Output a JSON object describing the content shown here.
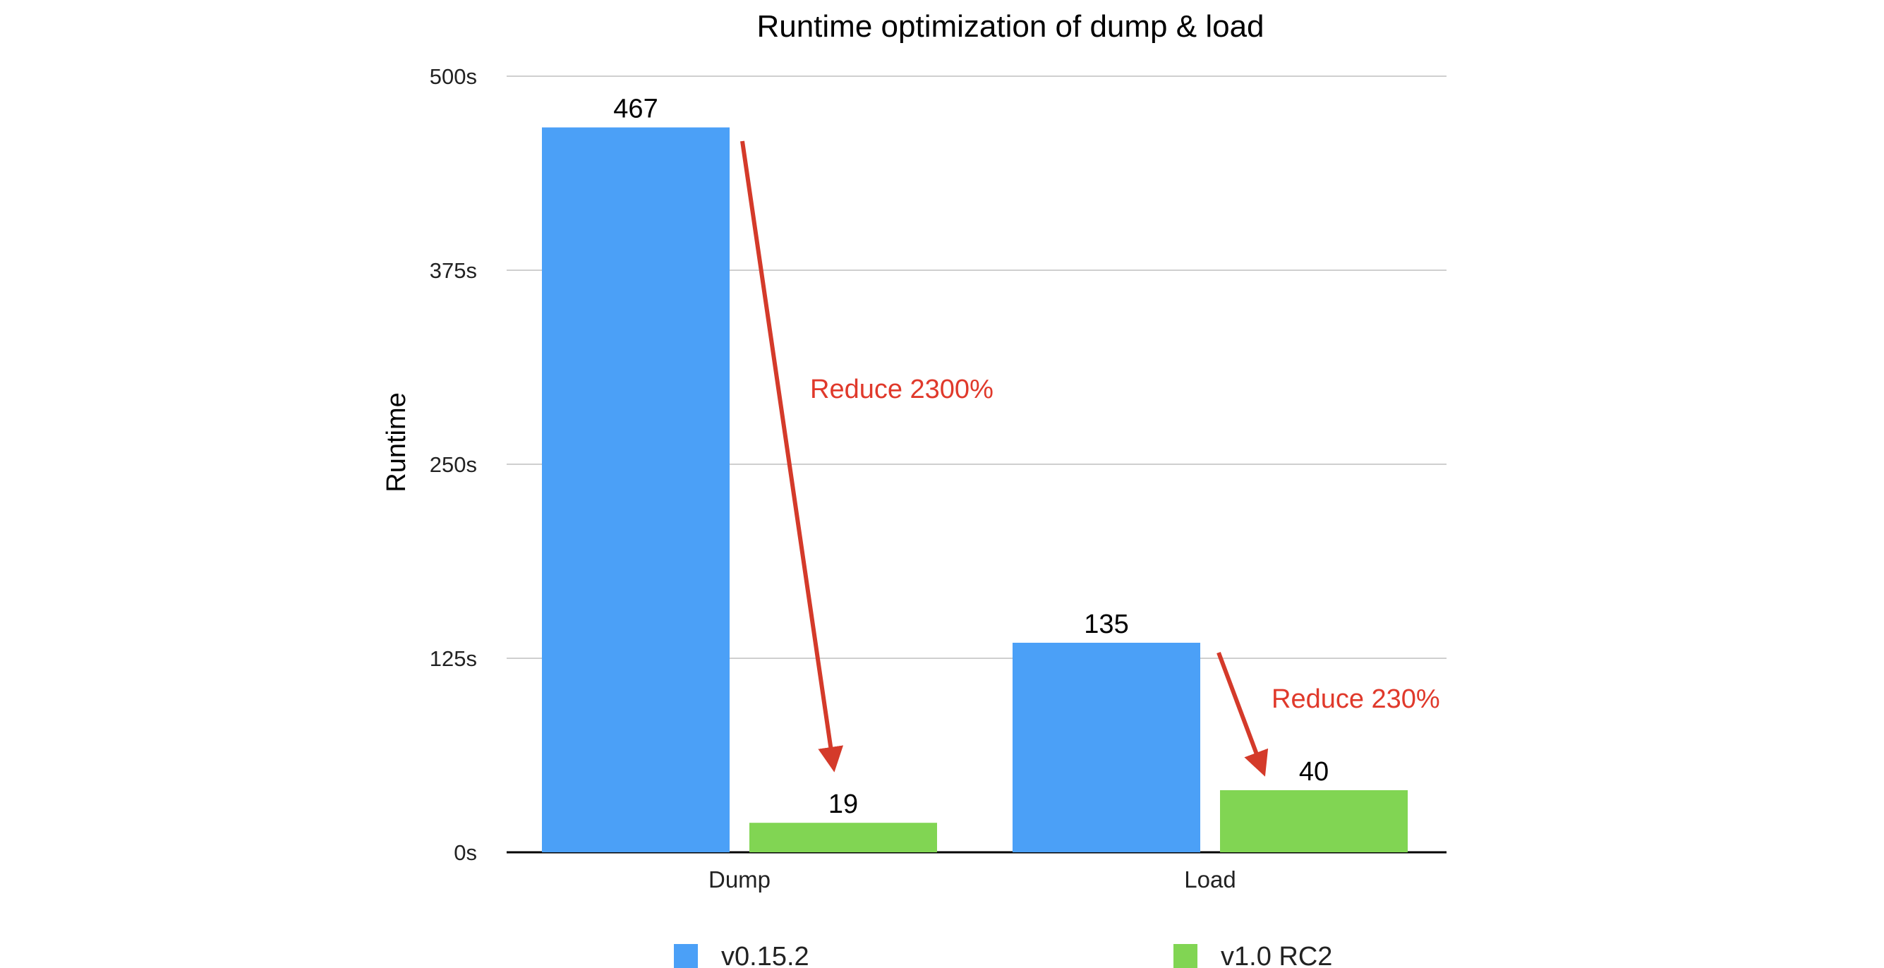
{
  "chart_data": {
    "type": "bar",
    "title": "Runtime optimization of dump & load",
    "xlabel": "",
    "ylabel": "Runtime",
    "ylim": [
      0,
      500
    ],
    "yticks": [
      0,
      125,
      250,
      375,
      500
    ],
    "ytick_labels": [
      "0s",
      "125s",
      "250s",
      "375s",
      "500s"
    ],
    "categories": [
      "Dump",
      "Load"
    ],
    "series": [
      {
        "name": "v0.15.2",
        "color": "#4BA0F7",
        "values": [
          467,
          135
        ],
        "labels": [
          "467",
          "135"
        ]
      },
      {
        "name": "v1.0 RC2",
        "color": "#81D553",
        "values": [
          19,
          40
        ],
        "labels": [
          "19",
          "40"
        ]
      }
    ],
    "grid": true,
    "legend_position": "bottom",
    "annotations": [
      {
        "text": "Reduce 2300%",
        "category": "Dump",
        "color": "#E0392B"
      },
      {
        "text": "Reduce 230%",
        "category": "Load",
        "color": "#E0392B"
      }
    ]
  }
}
